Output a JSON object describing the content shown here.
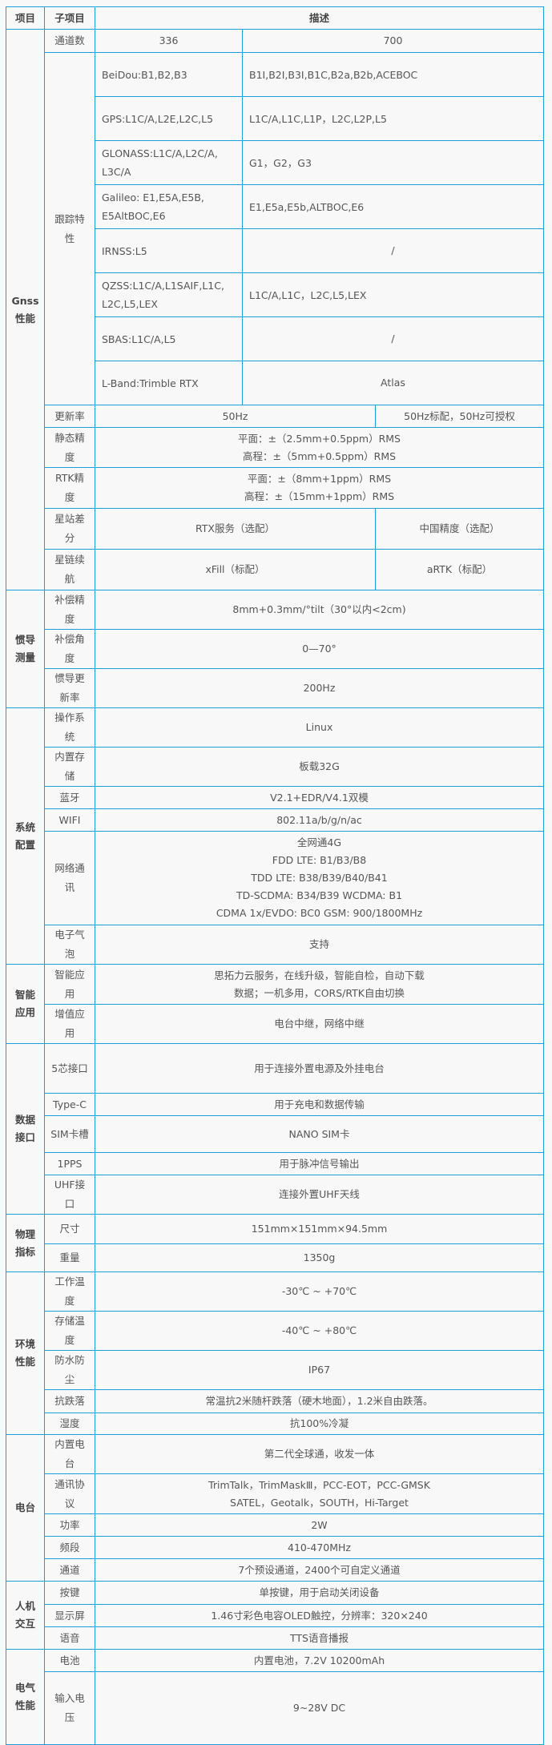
{
  "colors": {
    "border": "#1a9fd9",
    "background": "#f8f8f8",
    "text": "#555555"
  },
  "header": [
    "项目",
    "子项目",
    "描述"
  ],
  "sections": [
    {
      "label": [
        "Gnss",
        "性能"
      ],
      "rows": [
        {
          "sub": "通道数",
          "split": "a",
          "cells": [
            [
              "336"
            ],
            [
              "700"
            ]
          ]
        },
        {
          "sub": "跟踪特性",
          "sub_rowspan": 8,
          "split": "a",
          "align": "left",
          "cells": [
            [
              "BeiDou:B1,B2,B3"
            ],
            [
              "B1I,B2I,B3I,B1C,B2a,B2b,ACEBOC"
            ]
          ]
        },
        {
          "split": "a",
          "align": "left",
          "cells": [
            [
              "GPS:L1C/A,L2E,L2C,L5"
            ],
            [
              "L1C/A,L1C,L1P，L2C,L2P,L5"
            ]
          ]
        },
        {
          "split": "a",
          "align": "left",
          "cells": [
            [
              "GLONASS:L1C/A,L2C/A,",
              "L3C/A"
            ],
            [
              "G1，G2，G3"
            ]
          ]
        },
        {
          "split": "a",
          "align": "left",
          "cells": [
            [
              "Galileo:  E1,E5A,E5B,",
              "E5AltBOC,E6"
            ],
            [
              "E1,E5a,E5b,ALTBOC,E6"
            ]
          ]
        },
        {
          "split": "a",
          "align": "left",
          "cells": [
            [
              "IRNSS:L5"
            ],
            [
              "/"
            ]
          ],
          "center_second": true
        },
        {
          "split": "a",
          "align": "left",
          "cells": [
            [
              "QZSS:L1C/A,L1SAIF,L1C,",
              "L2C,L5,LEX"
            ],
            [
              "L1C/A,L1C，L2C,L5,LEX"
            ]
          ]
        },
        {
          "split": "a",
          "align": "left",
          "cells": [
            [
              "SBAS:L1C/A,L5"
            ],
            [
              "/"
            ]
          ],
          "center_second": true
        },
        {
          "split": "a",
          "align": "left",
          "cells": [
            [
              "L-Band:Trimble RTX"
            ],
            [
              "Atlas"
            ]
          ],
          "center_second": true
        },
        {
          "sub": "更新率",
          "split": "b",
          "cells": [
            [
              "50Hz"
            ],
            [
              "50Hz标配，50Hz可授权"
            ]
          ]
        },
        {
          "sub": "静态精度",
          "cells": [
            [
              "平面：±（2.5mm+0.5ppm）RMS",
              "高程：±（5mm+0.5ppm）RMS"
            ]
          ]
        },
        {
          "sub": "RTK精度",
          "cells": [
            [
              "平面：±（8mm+1ppm）RMS",
              "高程：±（15mm+1ppm）RMS"
            ]
          ]
        },
        {
          "sub": "星站差分",
          "split": "b",
          "cells": [
            [
              "RTX服务（选配）"
            ],
            [
              "中国精度（选配）"
            ]
          ]
        },
        {
          "sub": "星链续航",
          "split": "b",
          "cells": [
            [
              "xFill（标配）"
            ],
            [
              "aRTK（标配）"
            ]
          ]
        }
      ]
    },
    {
      "label": [
        "惯导",
        "测量"
      ],
      "rows": [
        {
          "sub": "补偿精度",
          "cells": [
            [
              "8mm+0.3mm/°tilt（30°以内<2cm)"
            ]
          ]
        },
        {
          "sub": "补偿角度",
          "cells": [
            [
              "0—70°"
            ]
          ]
        },
        {
          "sub": "惯导更新率",
          "cells": [
            [
              "200Hz"
            ]
          ]
        }
      ]
    },
    {
      "label": [
        "系统",
        "配置"
      ],
      "rows": [
        {
          "sub": "操作系统",
          "cells": [
            [
              "Linux"
            ]
          ]
        },
        {
          "sub": "内置存储",
          "cells": [
            [
              "板载32G"
            ]
          ]
        },
        {
          "sub": "蓝牙",
          "cells": [
            [
              "V2.1+EDR/V4.1双模"
            ]
          ]
        },
        {
          "sub": "WIFI",
          "cells": [
            [
              "802.11a/b/g/n/ac"
            ]
          ]
        },
        {
          "sub": "网络通讯",
          "cells": [
            [
              "全网通4G",
              "FDD LTE: B1/B3/B8",
              "TDD LTE: B38/B39/B40/B41",
              "TD-SCDMA: B34/B39   WCDMA: B1",
              "CDMA 1x/EVDO: BC0   GSM: 900/1800MHz"
            ]
          ]
        },
        {
          "sub": "电子气泡",
          "cells": [
            [
              "支持"
            ]
          ]
        }
      ]
    },
    {
      "label": [
        "智能",
        "应用"
      ],
      "rows": [
        {
          "sub": "智能应用",
          "cells": [
            [
              "思拓力云服务，在线升级，智能自检，自动下载",
              "数据；一机多用，CORS/RTK自由切换"
            ]
          ]
        },
        {
          "sub": "增值应用",
          "cells": [
            [
              "电台中继，网络中继"
            ]
          ]
        }
      ]
    },
    {
      "label": [
        "数据",
        "接口"
      ],
      "rows": [
        {
          "sub": "5芯接口",
          "cells": [
            [
              "用于连接外置电源及外挂电台"
            ]
          ]
        },
        {
          "sub": "Type-C",
          "cells": [
            [
              "用于充电和数据传输"
            ]
          ]
        },
        {
          "sub": "SIM卡槽",
          "cells": [
            [
              "NANO SIM卡"
            ]
          ]
        },
        {
          "sub": "1PPS",
          "cells": [
            [
              "用于脉冲信号输出"
            ]
          ]
        },
        {
          "sub": "UHF接口",
          "cells": [
            [
              "连接外置UHF天线"
            ]
          ]
        }
      ]
    },
    {
      "label": [
        "物理",
        "指标"
      ],
      "rows": [
        {
          "sub": "尺寸",
          "cells": [
            [
              "151mm×151mm×94.5mm"
            ]
          ]
        },
        {
          "sub": "重量",
          "cells": [
            [
              "1350g"
            ]
          ]
        }
      ]
    },
    {
      "label": [
        "环境",
        "性能"
      ],
      "rows": [
        {
          "sub": "工作温度",
          "cells": [
            [
              "-30℃ ~ +70℃"
            ]
          ]
        },
        {
          "sub": "存储温度",
          "cells": [
            [
              "-40℃ ~ +80℃"
            ]
          ]
        },
        {
          "sub": "防水防尘",
          "cells": [
            [
              "IP67"
            ]
          ]
        },
        {
          "sub": "抗跌落",
          "cells": [
            [
              "常温抗2米随杆跌落（硬木地面），1.2米自由跌落。"
            ]
          ]
        },
        {
          "sub": "湿度",
          "cells": [
            [
              "抗100%冷凝"
            ]
          ]
        }
      ]
    },
    {
      "label": [
        "电台"
      ],
      "rows": [
        {
          "sub": "内置电台",
          "cells": [
            [
              "第二代全球通，收发一体"
            ]
          ]
        },
        {
          "sub": "通讯协议",
          "cells": [
            [
              "TrimTalk，TrimMaskⅢ，PCC-EOT，PCC-GMSK",
              "SATEL，Geotalk，SOUTH，Hi-Target"
            ]
          ]
        },
        {
          "sub": "功率",
          "cells": [
            [
              "2W"
            ]
          ]
        },
        {
          "sub": "频段",
          "cells": [
            [
              "410-470MHz"
            ]
          ]
        },
        {
          "sub": "通道",
          "cells": [
            [
              "7个预设通道，2400个可自定义通道"
            ]
          ]
        }
      ]
    },
    {
      "label": [
        "人机",
        "交互"
      ],
      "rows": [
        {
          "sub": "按键",
          "cells": [
            [
              "单按键，用于启动关闭设备"
            ]
          ]
        },
        {
          "sub": "显示屏",
          "cells": [
            [
              "1.46寸彩色电容OLED触控，分辨率：320×240"
            ]
          ]
        },
        {
          "sub": "语音",
          "cells": [
            [
              "TTS语音播报"
            ]
          ]
        }
      ]
    },
    {
      "label": [
        "电气",
        "性能"
      ],
      "rows": [
        {
          "sub": "电池",
          "cells": [
            [
              "内置电池，7.2V 10200mAh"
            ]
          ]
        },
        {
          "sub": "输入电压",
          "cells": [
            [
              "9~28V DC"
            ]
          ]
        }
      ]
    }
  ]
}
